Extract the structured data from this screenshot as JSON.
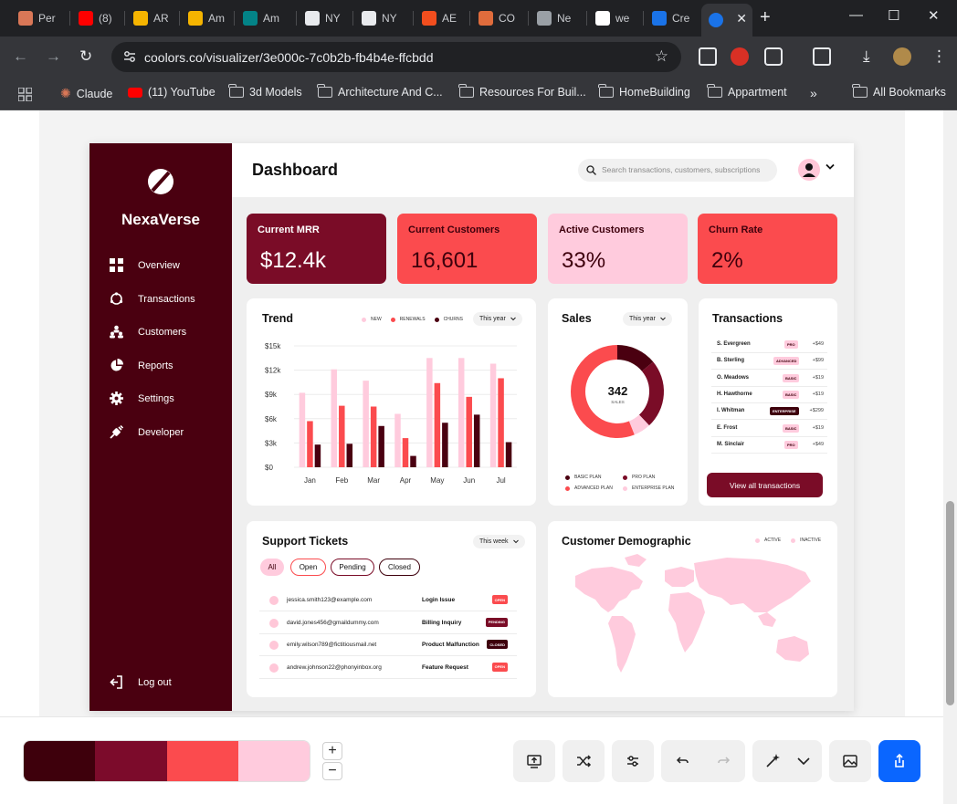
{
  "browser": {
    "tabs": [
      {
        "title": "Per",
        "color": "#d97757"
      },
      {
        "title": "(8)",
        "color": "#ff0000"
      },
      {
        "title": "AR",
        "color": "#f5b400"
      },
      {
        "title": "Am",
        "color": "#f5b400"
      },
      {
        "title": "Am",
        "color": "#038387"
      },
      {
        "title": "NY",
        "color": "#e8eaed"
      },
      {
        "title": "NY",
        "color": "#e8eaed"
      },
      {
        "title": "AE",
        "color": "#f24e1e"
      },
      {
        "title": "CO",
        "color": "#e06c3c"
      },
      {
        "title": "Ne",
        "color": "#9aa0a6"
      },
      {
        "title": "we",
        "color": "#ffffff"
      },
      {
        "title": "Cre",
        "color": "#1a73e8"
      }
    ],
    "active_tab_color": "#1a73e8",
    "url": "coolors.co/visualizer/3e000c-7c0b2b-fb4b4e-ffcbdd",
    "bookmarks": [
      "Claude",
      "(11) YouTube",
      "3d Models",
      "Architecture And C...",
      "Resources For Buil...",
      "HomeBuilding",
      "Appartment",
      "All Bookmarks"
    ]
  },
  "dashboard": {
    "brand": "NexaVerse",
    "nav": [
      "Overview",
      "Transactions",
      "Customers",
      "Reports",
      "Settings",
      "Developer"
    ],
    "logout": "Log out",
    "title": "Dashboard",
    "search_placeholder": "Search transactions, customers, subscriptions",
    "kpis": [
      {
        "label": "Current MRR",
        "value": "$12.4k",
        "bg": "#7a0c27",
        "fg": "#ffffff"
      },
      {
        "label": "Current Customers",
        "value": "16,601",
        "bg": "#fb4b4e",
        "fg": "#3e000c"
      },
      {
        "label": "Active Customers",
        "value": "33%",
        "bg": "#ffcbdd",
        "fg": "#3e000c"
      },
      {
        "label": "Churn Rate",
        "value": "2%",
        "bg": "#fb4b4e",
        "fg": "#3e000c"
      }
    ],
    "trend": {
      "title": "Trend",
      "legend": [
        "NEW",
        "RENEWALS",
        "CHURNS"
      ],
      "period": "This year"
    },
    "sales": {
      "title": "Sales",
      "period": "This year",
      "center_value": "342",
      "center_label": "SALES",
      "legend": [
        "BASIC PLAN",
        "PRO PLAN",
        "ADVANCED PLAN",
        "ENTERPRISE PLAN"
      ]
    },
    "transactions": {
      "title": "Transactions",
      "rows": [
        {
          "name": "S. Evergreen",
          "plan": "PRO",
          "amount": "+$49"
        },
        {
          "name": "B. Sterling",
          "plan": "ADVANCED",
          "amount": "+$99"
        },
        {
          "name": "O. Meadows",
          "plan": "BASIC",
          "amount": "+$19"
        },
        {
          "name": "H. Hawthorne",
          "plan": "BASIC",
          "amount": "+$19"
        },
        {
          "name": "I. Whitman",
          "plan": "ENTERPRISE",
          "amount": "+$299"
        },
        {
          "name": "E. Frost",
          "plan": "BASIC",
          "amount": "+$19"
        },
        {
          "name": "M. Sinclair",
          "plan": "PRO",
          "amount": "+$49"
        }
      ],
      "button": "View all transactions"
    },
    "support": {
      "title": "Support Tickets",
      "period": "This week",
      "filters": [
        "All",
        "Open",
        "Pending",
        "Closed"
      ],
      "rows": [
        {
          "email": "jessica.smith123@example.com",
          "topic": "Login Issue",
          "status": "OPEN"
        },
        {
          "email": "david.jones456@gmaildummy.com",
          "topic": "Billing Inquiry",
          "status": "PENDING"
        },
        {
          "email": "emily.wilson789@fictitiousmail.net",
          "topic": "Product Malfunction",
          "status": "CLOSED"
        },
        {
          "email": "andrew.johnson22@phonyinbox.org",
          "topic": "Feature Request",
          "status": "OPEN"
        }
      ]
    },
    "demographic": {
      "title": "Customer Demographic",
      "legend": [
        "ACTIVE",
        "INACTIVE"
      ]
    }
  },
  "chart_data": {
    "type": "bar",
    "categories": [
      "Jan",
      "Feb",
      "Mar",
      "Apr",
      "May",
      "Jun",
      "Jul"
    ],
    "series": [
      {
        "name": "NEW",
        "values": [
          9200,
          12100,
          10700,
          6600,
          13500,
          13500,
          12800
        ],
        "color": "#ffcbdd"
      },
      {
        "name": "RENEWALS",
        "values": [
          5700,
          7600,
          7500,
          3600,
          10400,
          8700,
          11000
        ],
        "color": "#fb4b4e"
      },
      {
        "name": "CHURNS",
        "values": [
          2800,
          2900,
          5100,
          1400,
          5500,
          6500,
          3100
        ],
        "color": "#4a0010"
      }
    ],
    "yticks": [
      "$0",
      "$3k",
      "$6k",
      "$9k",
      "$12k",
      "$15k"
    ],
    "ylim": [
      0,
      15000
    ],
    "grid": true
  },
  "sales_donut": [
    {
      "name": "BASIC PLAN",
      "value": 14,
      "color": "#4a0010"
    },
    {
      "name": "PRO PLAN",
      "value": 24,
      "color": "#7a0c27"
    },
    {
      "name": "ENTERPRISE PLAN",
      "value": 6,
      "color": "#ffcbdd"
    },
    {
      "name": "ADVANCED PLAN",
      "value": 56,
      "color": "#fb4b4e"
    }
  ],
  "palette": [
    "#3e000c",
    "#7c0b2b",
    "#fb4b4e",
    "#ffcbdd"
  ],
  "palette_tools": [
    "present-icon",
    "shuffle-icon",
    "adjust-icon",
    "undo-icon",
    "redo-icon",
    "magic-icon",
    "dropdown-icon",
    "image-icon",
    "share-icon"
  ]
}
